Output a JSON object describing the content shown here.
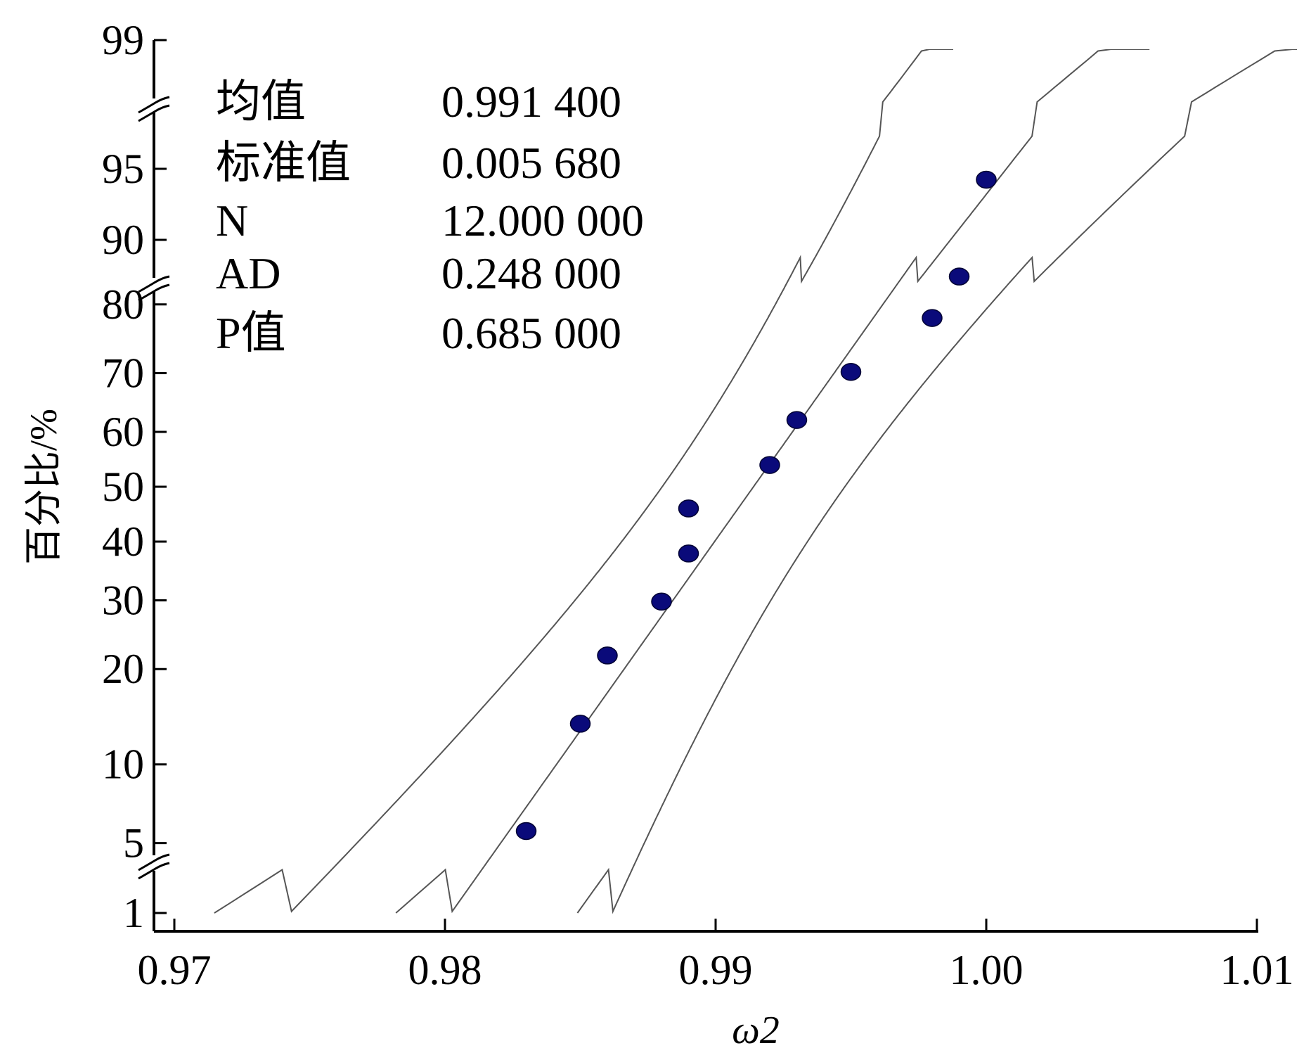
{
  "chart_data": {
    "type": "scatter",
    "subtype": "normal-probability-plot",
    "xlabel": "ω2",
    "ylabel": "百分比/%",
    "xlim": [
      0.97,
      1.01
    ],
    "x_ticks": [
      0.97,
      0.98,
      0.99,
      1.0,
      1.01
    ],
    "x_tick_labels": [
      "0.97",
      "0.98",
      "0.99",
      "1.00",
      "1.01"
    ],
    "y_scale": "normal-probability",
    "y_ticks": [
      1,
      5,
      10,
      20,
      30,
      40,
      50,
      60,
      70,
      80,
      90,
      95,
      99
    ],
    "y_tick_labels": [
      "1",
      "5",
      "10",
      "20",
      "30",
      "40",
      "50",
      "60",
      "70",
      "80",
      "90",
      "95",
      "99"
    ],
    "y_axis_breaks": true,
    "grid": false,
    "legend": "none",
    "points": [
      {
        "x": 0.983,
        "y": 5.6
      },
      {
        "x": 0.985,
        "y": 13.7
      },
      {
        "x": 0.986,
        "y": 21.8
      },
      {
        "x": 0.988,
        "y": 29.8
      },
      {
        "x": 0.989,
        "y": 37.9
      },
      {
        "x": 0.989,
        "y": 46.0
      },
      {
        "x": 0.992,
        "y": 54.0
      },
      {
        "x": 0.993,
        "y": 62.1
      },
      {
        "x": 0.995,
        "y": 70.2
      },
      {
        "x": 0.998,
        "y": 78.2
      },
      {
        "x": 0.999,
        "y": 86.3
      },
      {
        "x": 1.0,
        "y": 94.4
      }
    ],
    "fit_line": {
      "mean": 0.9914,
      "sd": 0.00568
    },
    "confidence_band": "95%",
    "stats": [
      {
        "label": "均值",
        "value": "0.991 400"
      },
      {
        "label": "标准值",
        "value": "0.005 680"
      },
      {
        "label": "N",
        "value": "12.000 000"
      },
      {
        "label": "AD",
        "value": "0.248 000"
      },
      {
        "label": "P值",
        "value": "0.685 000"
      }
    ],
    "colors": {
      "points": "#0a0a7a",
      "lines": "#555555",
      "axis": "#000000"
    }
  }
}
